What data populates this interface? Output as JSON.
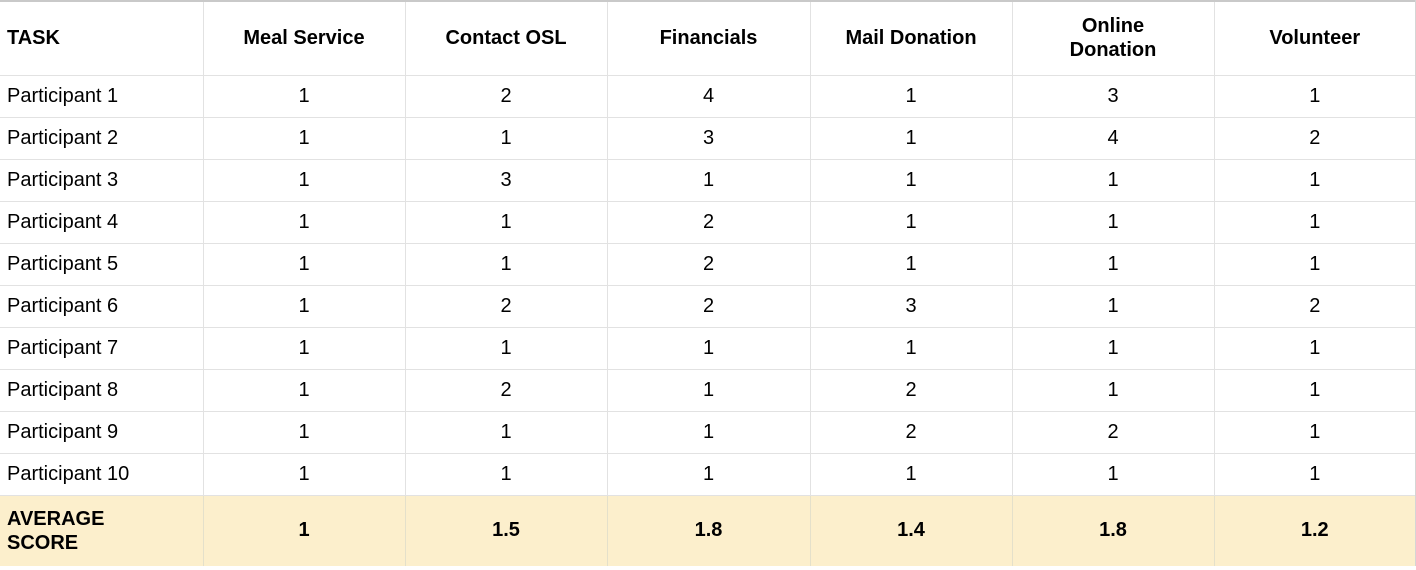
{
  "table": {
    "columns": [
      {
        "label": "TASK"
      },
      {
        "label": "Meal Service"
      },
      {
        "label": "Contact OSL"
      },
      {
        "label": "Financials"
      },
      {
        "label": "Mail Donation"
      },
      {
        "label": "Online\nDonation"
      },
      {
        "label": "Volunteer"
      }
    ],
    "rows": [
      {
        "label": "Participant 1",
        "values": [
          "1",
          "2",
          "4",
          "1",
          "3",
          "1"
        ]
      },
      {
        "label": "Participant 2",
        "values": [
          "1",
          "1",
          "3",
          "1",
          "4",
          "2"
        ]
      },
      {
        "label": "Participant 3",
        "values": [
          "1",
          "3",
          "1",
          "1",
          "1",
          "1"
        ]
      },
      {
        "label": "Participant 4",
        "values": [
          "1",
          "1",
          "2",
          "1",
          "1",
          "1"
        ]
      },
      {
        "label": "Participant 5",
        "values": [
          "1",
          "1",
          "2",
          "1",
          "1",
          "1"
        ]
      },
      {
        "label": "Participant 6",
        "values": [
          "1",
          "2",
          "2",
          "3",
          "1",
          "2"
        ]
      },
      {
        "label": "Participant 7",
        "values": [
          "1",
          "1",
          "1",
          "1",
          "1",
          "1"
        ]
      },
      {
        "label": "Participant 8",
        "values": [
          "1",
          "2",
          "1",
          "2",
          "1",
          "1"
        ]
      },
      {
        "label": "Participant 9",
        "values": [
          "1",
          "1",
          "1",
          "2",
          "2",
          "1"
        ]
      },
      {
        "label": "Participant 10",
        "values": [
          "1",
          "1",
          "1",
          "1",
          "1",
          "1"
        ]
      }
    ],
    "average_row": {
      "label": "AVERAGE\nSCORE",
      "values": [
        "1",
        "1.5",
        "1.8",
        "1.4",
        "1.8",
        "1.2"
      ]
    }
  },
  "chart_data": {
    "type": "table",
    "columns": [
      "TASK",
      "Meal Service",
      "Contact OSL",
      "Financials",
      "Mail Donation",
      "Online Donation",
      "Volunteer"
    ],
    "rows": [
      [
        "Participant 1",
        1,
        2,
        4,
        1,
        3,
        1
      ],
      [
        "Participant 2",
        1,
        1,
        3,
        1,
        4,
        2
      ],
      [
        "Participant 3",
        1,
        3,
        1,
        1,
        1,
        1
      ],
      [
        "Participant 4",
        1,
        1,
        2,
        1,
        1,
        1
      ],
      [
        "Participant 5",
        1,
        1,
        2,
        1,
        1,
        1
      ],
      [
        "Participant 6",
        1,
        2,
        2,
        3,
        1,
        2
      ],
      [
        "Participant 7",
        1,
        1,
        1,
        1,
        1,
        1
      ],
      [
        "Participant 8",
        1,
        2,
        1,
        2,
        1,
        1
      ],
      [
        "Participant 9",
        1,
        1,
        1,
        2,
        2,
        1
      ],
      [
        "Participant 10",
        1,
        1,
        1,
        1,
        1,
        1
      ],
      [
        "AVERAGE SCORE",
        1,
        1.5,
        1.8,
        1.4,
        1.8,
        1.2
      ]
    ]
  },
  "colors": {
    "average_row_background": "#FCEFCC",
    "gridline": "#E2E2E2",
    "outer_top_border": "#C9C9C9",
    "outer_right_border": "#D5D5D5",
    "text": "#000000"
  }
}
